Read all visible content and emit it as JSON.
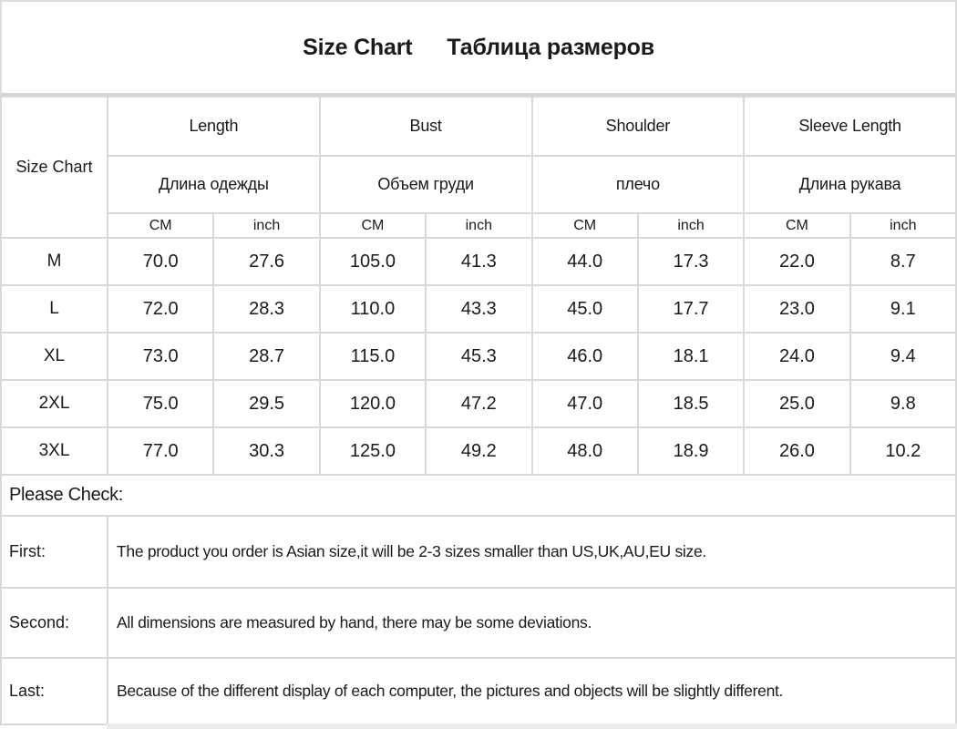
{
  "title": {
    "en": "Size Chart",
    "ru": "Таблица размеров"
  },
  "table": {
    "corner_label": "Size Chart",
    "groups": [
      {
        "en": "Length",
        "ru": "Длина одежды"
      },
      {
        "en": "Bust",
        "ru": "Объем груди"
      },
      {
        "en": "Shoulder",
        "ru": "плечо"
      },
      {
        "en": "Sleeve Length",
        "ru": "Длина рукава"
      }
    ],
    "unit_cm": "CM",
    "unit_inch": "inch",
    "rows": [
      {
        "size": "M",
        "values": [
          "70.0",
          "27.6",
          "105.0",
          "41.3",
          "44.0",
          "17.3",
          "22.0",
          "8.7"
        ]
      },
      {
        "size": "L",
        "values": [
          "72.0",
          "28.3",
          "110.0",
          "43.3",
          "45.0",
          "17.7",
          "23.0",
          "9.1"
        ]
      },
      {
        "size": "XL",
        "values": [
          "73.0",
          "28.7",
          "115.0",
          "45.3",
          "46.0",
          "18.1",
          "24.0",
          "9.4"
        ]
      },
      {
        "size": "2XL",
        "values": [
          "75.0",
          "29.5",
          "120.0",
          "47.2",
          "47.0",
          "18.5",
          "25.0",
          "9.8"
        ]
      },
      {
        "size": "3XL",
        "values": [
          "77.0",
          "30.3",
          "125.0",
          "49.2",
          "48.0",
          "18.9",
          "26.0",
          "10.2"
        ]
      }
    ]
  },
  "notes": {
    "heading": "Please Check:",
    "items": [
      {
        "label": "First:",
        "text": "The product you order is Asian size,it will be 2-3 sizes smaller than US,UK,AU,EU size."
      },
      {
        "label": "Second:",
        "text": "All dimensions are measured by hand, there may be some deviations."
      },
      {
        "label": "Last:",
        "text": "Because of the different display of each computer, the pictures and objects will be slightly different."
      }
    ]
  },
  "colors": {
    "background": "#ffffff",
    "border": "#d9d9d9",
    "text": "#1a1a1a"
  }
}
